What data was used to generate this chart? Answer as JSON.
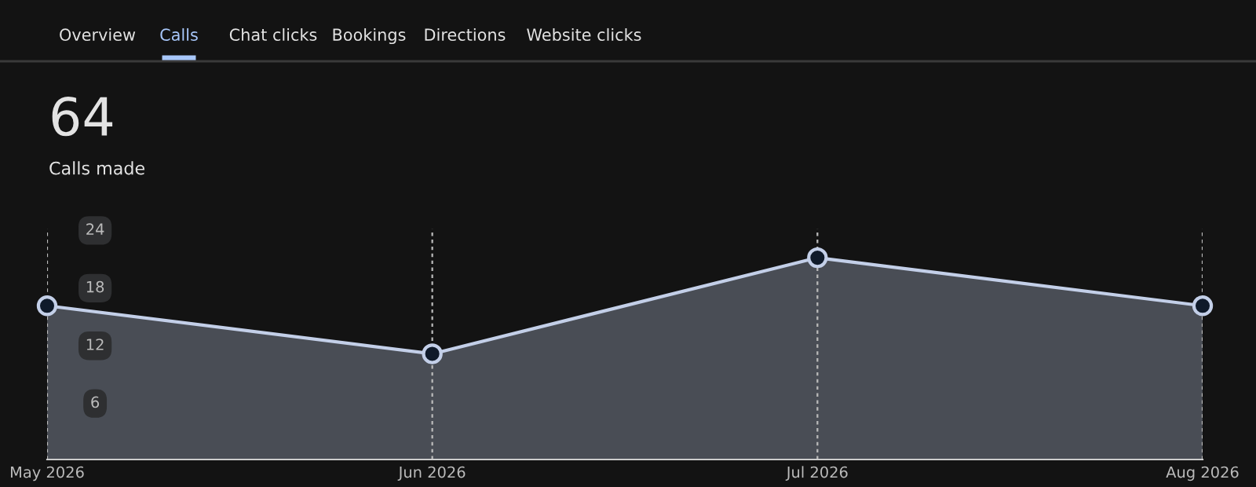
{
  "chart_data": {
    "type": "area",
    "title": "Calls made",
    "annotations": [
      "Overview",
      "Calls",
      "Chat clicks",
      "Bookings",
      "Directions",
      "Website clicks",
      "64"
    ],
    "categories": [
      "May 2026",
      "Jun 2026",
      "Jul 2026",
      "Aug 2026"
    ],
    "series": [
      {
        "color": "#c3cfe8",
        "values": [
          16,
          11,
          21,
          16
        ]
      }
    ],
    "ylim": [
      0,
      24
    ],
    "yticks": [
      6,
      12,
      18,
      24
    ],
    "grid": "x",
    "marker": "circle",
    "line_style": "solid",
    "legend": false
  }
}
